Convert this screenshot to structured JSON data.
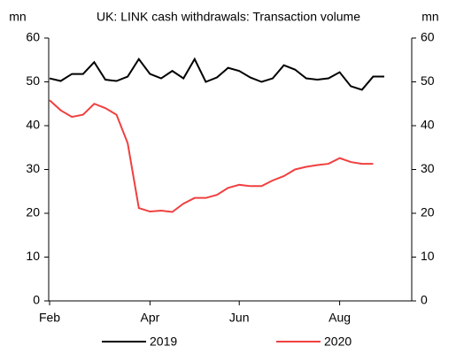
{
  "chart_data": {
    "type": "line",
    "title": "UK: LINK cash withdrawals: Transaction volume",
    "y_label": "mn",
    "y2_label": "mn",
    "categories": [
      "Feb",
      null,
      null,
      null,
      null,
      null,
      null,
      null,
      null,
      "Apr",
      null,
      null,
      null,
      null,
      null,
      null,
      null,
      "Jun",
      null,
      null,
      null,
      null,
      null,
      null,
      null,
      null,
      "Aug",
      null,
      null,
      null,
      null
    ],
    "series": [
      {
        "name": "2019",
        "color": "#000000",
        "values": [
          50.8,
          50.2,
          51.8,
          51.8,
          54.5,
          50.5,
          50.2,
          51.2,
          55.2,
          51.8,
          50.8,
          52.5,
          50.8,
          55.2,
          50.0,
          51.0,
          53.2,
          52.5,
          51.0,
          50.0,
          50.8,
          53.8,
          52.8,
          50.8,
          50.5,
          50.8,
          52.2,
          49.0,
          48.2,
          51.2,
          51.2
        ]
      },
      {
        "name": "2020",
        "color": "#f04040",
        "values": [
          45.8,
          43.5,
          42.0,
          42.5,
          45.0,
          44.0,
          42.5,
          36.0,
          21.2,
          20.4,
          20.6,
          20.3,
          22.2,
          23.5,
          23.5,
          24.2,
          25.8,
          26.5,
          26.2,
          26.2,
          27.5,
          28.5,
          30.0,
          30.6,
          31.0,
          31.3,
          32.6,
          31.7,
          31.3,
          31.3,
          null
        ]
      }
    ],
    "ylim": [
      0,
      60
    ],
    "yticks": [
      0,
      10,
      20,
      30,
      40,
      50,
      60
    ],
    "y2lim": [
      0,
      60
    ],
    "y2ticks": [
      0,
      10,
      20,
      30,
      40,
      50,
      60
    ],
    "grid": false
  }
}
